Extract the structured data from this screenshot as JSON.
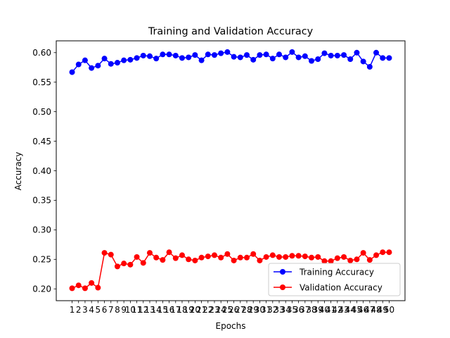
{
  "chart_data": {
    "type": "line",
    "title": "Training and Validation Accuracy",
    "xlabel": "Epochs",
    "ylabel": "Accuracy",
    "x": [
      1,
      2,
      3,
      4,
      5,
      6,
      7,
      8,
      9,
      10,
      11,
      12,
      13,
      14,
      15,
      16,
      17,
      18,
      19,
      20,
      21,
      22,
      23,
      24,
      25,
      26,
      27,
      28,
      29,
      30,
      31,
      32,
      33,
      34,
      35,
      36,
      37,
      38,
      39,
      40,
      41,
      42,
      43,
      44,
      45,
      46,
      47,
      48,
      49,
      50
    ],
    "x_tick_labels": [
      "1",
      "2",
      "3",
      "4",
      "5",
      "6",
      "7",
      "8",
      "9",
      "10",
      "11",
      "12",
      "13",
      "14",
      "15",
      "16",
      "17",
      "18",
      "19",
      "20",
      "21",
      "22",
      "23",
      "24",
      "25",
      "26",
      "27",
      "28",
      "29",
      "30",
      "31",
      "32",
      "33",
      "34",
      "35",
      "36",
      "37",
      "38",
      "39",
      "40",
      "41",
      "42",
      "43",
      "44",
      "45",
      "46",
      "47",
      "48",
      "49",
      "50"
    ],
    "ylim": [
      0.18,
      0.62
    ],
    "y_ticks": [
      0.2,
      0.25,
      0.3,
      0.35,
      0.4,
      0.45,
      0.5,
      0.55,
      0.6
    ],
    "y_tick_labels": [
      "0.20",
      "0.25",
      "0.30",
      "0.35",
      "0.40",
      "0.45",
      "0.50",
      "0.55",
      "0.60"
    ],
    "grid": false,
    "legend_position": "lower-right",
    "series": [
      {
        "name": "Training Accuracy",
        "color": "#0000ff",
        "marker": "circle",
        "values": [
          0.567,
          0.58,
          0.587,
          0.574,
          0.578,
          0.59,
          0.581,
          0.583,
          0.587,
          0.588,
          0.591,
          0.595,
          0.594,
          0.59,
          0.597,
          0.597,
          0.595,
          0.591,
          0.592,
          0.596,
          0.587,
          0.597,
          0.596,
          0.599,
          0.601,
          0.593,
          0.592,
          0.596,
          0.588,
          0.596,
          0.597,
          0.59,
          0.597,
          0.592,
          0.601,
          0.592,
          0.594,
          0.586,
          0.589,
          0.599,
          0.595,
          0.595,
          0.596,
          0.589,
          0.6,
          0.585,
          0.576,
          0.6,
          0.591,
          0.591
        ]
      },
      {
        "name": "Validation Accuracy",
        "color": "#ff0000",
        "marker": "circle",
        "values": [
          0.201,
          0.206,
          0.201,
          0.21,
          0.202,
          0.261,
          0.258,
          0.238,
          0.243,
          0.241,
          0.254,
          0.244,
          0.261,
          0.253,
          0.249,
          0.262,
          0.252,
          0.257,
          0.25,
          0.248,
          0.253,
          0.255,
          0.257,
          0.253,
          0.259,
          0.248,
          0.253,
          0.253,
          0.259,
          0.248,
          0.254,
          0.257,
          0.254,
          0.254,
          0.256,
          0.256,
          0.255,
          0.253,
          0.254,
          0.247,
          0.247,
          0.252,
          0.254,
          0.248,
          0.25,
          0.261,
          0.249,
          0.257,
          0.262,
          0.262
        ]
      }
    ]
  }
}
